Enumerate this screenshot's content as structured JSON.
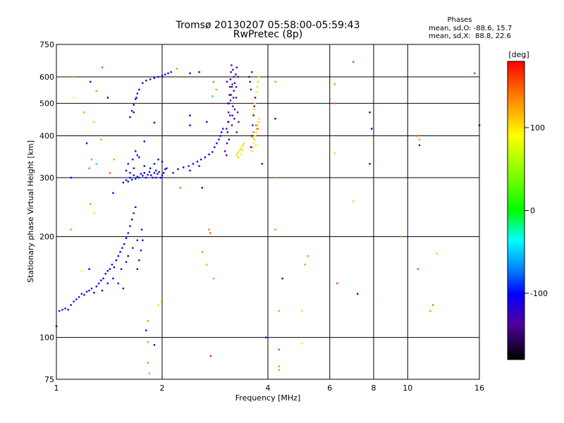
{
  "chart_data": {
    "type": "scatter",
    "title": "Tromsø 20130207 05:58:00-05:59:43",
    "subtitle": "RwPretec (8p)",
    "phases": {
      "heading": "Phases",
      "line_o": "mean, sd,O: -88.6, 15.7",
      "line_x": "mean, sd,X:  88.8, 22.6"
    },
    "xlabel": "Frequency [MHz]",
    "ylabel": "Stationary phase Virtual Height [km]",
    "x_scale": "log",
    "y_scale": "log",
    "xlim": [
      1,
      16
    ],
    "ylim": [
      75,
      750
    ],
    "x_ticks": [
      1,
      2,
      4,
      6,
      8,
      10,
      16
    ],
    "y_ticks": [
      75,
      100,
      200,
      300,
      400,
      500,
      600,
      750
    ],
    "grid": true,
    "colorbar": {
      "label": "[deg]",
      "range": [
        -180,
        180
      ],
      "ticks": [
        100,
        0,
        -100
      ]
    },
    "points_note_colors": {
      "blue": "#1e50ff",
      "navy": "#2a20c0",
      "yellow": "#e6e600",
      "orange": "#ff9a00"
    },
    "points": [
      [
        1.0,
        108,
        -110
      ],
      [
        1.02,
        120,
        -108
      ],
      [
        1.04,
        121,
        -112
      ],
      [
        1.06,
        122,
        -105
      ],
      [
        1.08,
        121,
        -115
      ],
      [
        1.1,
        125,
        -110
      ],
      [
        1.12,
        128,
        -108
      ],
      [
        1.14,
        130,
        -112
      ],
      [
        1.16,
        132,
        -106
      ],
      [
        1.18,
        135,
        -110
      ],
      [
        1.2,
        134,
        -115
      ],
      [
        1.22,
        137,
        -108
      ],
      [
        1.24,
        138,
        -112
      ],
      [
        1.26,
        140,
        -104
      ],
      [
        1.28,
        136,
        -110
      ],
      [
        1.3,
        142,
        -112
      ],
      [
        1.32,
        145,
        -108
      ],
      [
        1.34,
        148,
        -110
      ],
      [
        1.36,
        150,
        -106
      ],
      [
        1.38,
        155,
        -112
      ],
      [
        1.4,
        158,
        -110
      ],
      [
        1.42,
        160,
        -115
      ],
      [
        1.44,
        165,
        -108
      ],
      [
        1.46,
        162,
        -110
      ],
      [
        1.48,
        170,
        -112
      ],
      [
        1.5,
        175,
        -108
      ],
      [
        1.52,
        180,
        -110
      ],
      [
        1.54,
        185,
        -106
      ],
      [
        1.56,
        190,
        -112
      ],
      [
        1.58,
        198,
        -110
      ],
      [
        1.6,
        205,
        -108
      ],
      [
        1.62,
        215,
        -112
      ],
      [
        1.64,
        225,
        -110
      ],
      [
        1.66,
        235,
        -106
      ],
      [
        1.68,
        245,
        -112
      ],
      [
        1.7,
        160,
        -110
      ],
      [
        1.72,
        170,
        -115
      ],
      [
        1.74,
        182,
        -108
      ],
      [
        1.76,
        195,
        -110
      ],
      [
        1.45,
        150,
        -112
      ],
      [
        1.5,
        145,
        -108
      ],
      [
        1.55,
        140,
        -110
      ],
      [
        1.35,
        138,
        -106
      ],
      [
        1.4,
        145,
        -112
      ],
      [
        1.6,
        175,
        -110
      ],
      [
        1.65,
        185,
        -108
      ],
      [
        1.7,
        195,
        -112
      ],
      [
        1.75,
        210,
        -110
      ],
      [
        1.53,
        160,
        -106
      ],
      [
        1.58,
        168,
        -112
      ],
      [
        1.55,
        290,
        -110
      ],
      [
        1.58,
        295,
        -108
      ],
      [
        1.6,
        292,
        -112
      ],
      [
        1.62,
        300,
        -110
      ],
      [
        1.64,
        296,
        -106
      ],
      [
        1.66,
        305,
        -112
      ],
      [
        1.68,
        298,
        -110
      ],
      [
        1.7,
        302,
        -108
      ],
      [
        1.72,
        300,
        -112
      ],
      [
        1.74,
        308,
        -110
      ],
      [
        1.76,
        304,
        -106
      ],
      [
        1.78,
        310,
        -112
      ],
      [
        1.8,
        300,
        -110
      ],
      [
        1.82,
        306,
        -108
      ],
      [
        1.84,
        312,
        -112
      ],
      [
        1.86,
        305,
        -110
      ],
      [
        1.88,
        300,
        -106
      ],
      [
        1.9,
        310,
        -112
      ],
      [
        1.92,
        315,
        -110
      ],
      [
        1.94,
        308,
        -108
      ],
      [
        1.96,
        312,
        -112
      ],
      [
        1.98,
        300,
        -110
      ],
      [
        2.0,
        305,
        -106
      ],
      [
        2.02,
        310,
        -112
      ],
      [
        2.04,
        318,
        -110
      ],
      [
        2.06,
        320,
        -108
      ],
      [
        1.6,
        330,
        -112
      ],
      [
        1.65,
        340,
        -110
      ],
      [
        1.7,
        350,
        -106
      ],
      [
        1.68,
        360,
        -112
      ],
      [
        1.72,
        345,
        -110
      ],
      [
        1.9,
        330,
        -108
      ],
      [
        1.95,
        340,
        -112
      ],
      [
        2.0,
        335,
        -110
      ],
      [
        1.62,
        310,
        -106
      ],
      [
        1.78,
        325,
        -112
      ],
      [
        1.85,
        320,
        -110
      ],
      [
        1.92,
        300,
        -108
      ],
      [
        1.58,
        315,
        -112
      ],
      [
        1.66,
        320,
        -110
      ],
      [
        2.15,
        310,
        -108
      ],
      [
        2.22,
        318,
        -112
      ],
      [
        2.3,
        322,
        -110
      ],
      [
        2.38,
        325,
        -106
      ],
      [
        2.45,
        330,
        -112
      ],
      [
        2.52,
        335,
        -110
      ],
      [
        2.58,
        340,
        -108
      ],
      [
        2.65,
        345,
        -112
      ],
      [
        2.72,
        352,
        -110
      ],
      [
        2.78,
        358,
        -106
      ],
      [
        2.82,
        370,
        -112
      ],
      [
        2.86,
        380,
        -110
      ],
      [
        2.9,
        390,
        -108
      ],
      [
        2.93,
        400,
        -112
      ],
      [
        2.95,
        410,
        -110
      ],
      [
        2.98,
        420,
        -106
      ],
      [
        2.4,
        315,
        -112
      ],
      [
        2.55,
        325,
        -110
      ],
      [
        1.62,
        455,
        -110
      ],
      [
        1.64,
        475,
        -108
      ],
      [
        1.66,
        495,
        -112
      ],
      [
        1.68,
        515,
        -110
      ],
      [
        1.7,
        535,
        -106
      ],
      [
        1.66,
        470,
        -112
      ],
      [
        1.69,
        520,
        -110
      ],
      [
        1.72,
        550,
        -108
      ],
      [
        1.76,
        575,
        -112
      ],
      [
        1.8,
        585,
        -110
      ],
      [
        1.85,
        590,
        -106
      ],
      [
        1.9,
        595,
        -112
      ],
      [
        1.95,
        600,
        -110
      ],
      [
        2.0,
        605,
        -108
      ],
      [
        2.04,
        610,
        -112
      ],
      [
        2.08,
        615,
        -110
      ],
      [
        2.12,
        620,
        -106
      ],
      [
        3.05,
        350,
        -145
      ],
      [
        3.06,
        380,
        -140
      ],
      [
        3.07,
        410,
        -150
      ],
      [
        3.08,
        440,
        -135
      ],
      [
        3.09,
        470,
        -145
      ],
      [
        3.1,
        500,
        -140
      ],
      [
        3.11,
        530,
        -150
      ],
      [
        3.12,
        560,
        -142
      ],
      [
        3.13,
        590,
        -138
      ],
      [
        3.14,
        620,
        -148
      ],
      [
        3.15,
        650,
        -140
      ],
      [
        3.16,
        430,
        -145
      ],
      [
        3.17,
        460,
        -150
      ],
      [
        3.18,
        490,
        -140
      ],
      [
        3.19,
        520,
        -135
      ],
      [
        3.2,
        545,
        -145
      ],
      [
        3.22,
        575,
        -140
      ],
      [
        3.24,
        610,
        -150
      ],
      [
        3.26,
        640,
        -142
      ],
      [
        3.05,
        420,
        -138
      ],
      [
        3.08,
        500,
        -145
      ],
      [
        3.12,
        460,
        -140
      ],
      [
        3.16,
        560,
        -150
      ],
      [
        3.2,
        600,
        -142
      ],
      [
        3.25,
        520,
        -138
      ],
      [
        3.28,
        470,
        -145
      ],
      [
        3.3,
        440,
        -140
      ],
      [
        3.1,
        390,
        -150
      ],
      [
        3.14,
        530,
        -142
      ],
      [
        3.18,
        630,
        -138
      ],
      [
        3.22,
        480,
        -145
      ],
      [
        3.26,
        410,
        -140
      ],
      [
        3.06,
        580,
        -150
      ],
      [
        3.09,
        440,
        -142
      ],
      [
        3.13,
        510,
        -138
      ],
      [
        3.17,
        570,
        -145
      ],
      [
        3.21,
        450,
        -140
      ],
      [
        3.25,
        560,
        -150
      ],
      [
        3.29,
        600,
        -142
      ],
      [
        3.02,
        360,
        -138
      ],
      [
        3.25,
        350,
        110
      ],
      [
        3.28,
        355,
        115
      ],
      [
        3.31,
        360,
        105
      ],
      [
        3.34,
        365,
        112
      ],
      [
        3.37,
        370,
        108
      ],
      [
        3.4,
        375,
        110
      ],
      [
        3.29,
        345,
        115
      ],
      [
        3.35,
        352,
        105
      ],
      [
        3.42,
        380,
        112
      ],
      [
        3.38,
        362,
        108
      ],
      [
        3.6,
        360,
        110
      ],
      [
        3.62,
        370,
        115
      ],
      [
        3.64,
        380,
        105
      ],
      [
        3.66,
        390,
        112
      ],
      [
        3.68,
        400,
        108
      ],
      [
        3.7,
        410,
        110
      ],
      [
        3.72,
        420,
        115
      ],
      [
        3.74,
        430,
        105
      ],
      [
        3.76,
        440,
        112
      ],
      [
        3.78,
        450,
        108
      ],
      [
        3.63,
        465,
        110
      ],
      [
        3.65,
        480,
        115
      ],
      [
        3.67,
        500,
        105
      ],
      [
        3.69,
        520,
        112
      ],
      [
        3.71,
        540,
        108
      ],
      [
        3.73,
        560,
        110
      ],
      [
        3.75,
        580,
        115
      ],
      [
        3.77,
        600,
        105
      ],
      [
        3.62,
        395,
        112
      ],
      [
        3.7,
        375,
        108
      ],
      [
        3.58,
        370,
        -140
      ],
      [
        3.6,
        400,
        -145
      ],
      [
        3.62,
        430,
        -138
      ],
      [
        3.64,
        460,
        -142
      ],
      [
        3.66,
        490,
        -140
      ],
      [
        3.68,
        520,
        -145
      ],
      [
        3.58,
        550,
        -138
      ],
      [
        3.56,
        580,
        -142
      ],
      [
        3.54,
        600,
        -140
      ],
      [
        3.6,
        620,
        -145
      ],
      [
        3.64,
        410,
        140
      ],
      [
        3.7,
        430,
        145
      ],
      [
        3.74,
        420,
        150
      ],
      [
        1.12,
        600,
        125
      ],
      [
        1.25,
        580,
        -110
      ],
      [
        1.35,
        640,
        150
      ],
      [
        1.3,
        545,
        130
      ],
      [
        1.4,
        520,
        -110
      ],
      [
        1.12,
        520,
        90
      ],
      [
        1.2,
        470,
        125
      ],
      [
        1.28,
        440,
        110
      ],
      [
        1.22,
        380,
        -110
      ],
      [
        1.34,
        390,
        130
      ],
      [
        1.26,
        340,
        135
      ],
      [
        1.3,
        330,
        -50
      ],
      [
        1.24,
        320,
        140
      ],
      [
        1.1,
        300,
        -110
      ],
      [
        1.42,
        310,
        150
      ],
      [
        1.46,
        340,
        125
      ],
      [
        1.45,
        270,
        -110
      ],
      [
        1.25,
        250,
        130
      ],
      [
        1.28,
        235,
        110
      ],
      [
        1.1,
        210,
        130
      ],
      [
        1.18,
        158,
        90
      ],
      [
        1.24,
        160,
        -110
      ],
      [
        1.95,
        125,
        110
      ],
      [
        1.98,
        128,
        100
      ],
      [
        1.82,
        112,
        130
      ],
      [
        1.8,
        105,
        -110
      ],
      [
        1.82,
        97,
        130
      ],
      [
        1.9,
        95,
        -110
      ],
      [
        1.82,
        84,
        130
      ],
      [
        1.84,
        78,
        130
      ],
      [
        2.25,
        280,
        140
      ],
      [
        2.6,
        280,
        -110
      ],
      [
        2.72,
        210,
        140
      ],
      [
        2.74,
        205,
        150
      ],
      [
        2.6,
        180,
        130
      ],
      [
        2.68,
        165,
        120
      ],
      [
        2.8,
        150,
        130
      ],
      [
        2.75,
        88,
        170
      ],
      [
        2.4,
        460,
        -110
      ],
      [
        2.4,
        430,
        -110
      ],
      [
        2.8,
        580,
        140
      ],
      [
        2.85,
        550,
        130
      ],
      [
        2.78,
        525,
        -50
      ],
      [
        2.68,
        440,
        -110
      ],
      [
        3.85,
        330,
        -110
      ],
      [
        4.2,
        580,
        130
      ],
      [
        4.2,
        450,
        -110
      ],
      [
        4.2,
        300,
        130
      ],
      [
        4.2,
        210,
        130
      ],
      [
        4.4,
        150,
        -160
      ],
      [
        4.3,
        120,
        130
      ],
      [
        4.3,
        92,
        160
      ],
      [
        4.3,
        82,
        130
      ],
      [
        4.3,
        80,
        130
      ],
      [
        3.95,
        100,
        -110
      ],
      [
        5.2,
        175,
        130
      ],
      [
        5.1,
        165,
        130
      ],
      [
        5.0,
        120,
        110
      ],
      [
        5.0,
        96,
        80
      ],
      [
        6.2,
        570,
        130
      ],
      [
        6.2,
        500,
        150
      ],
      [
        6.2,
        355,
        60
      ],
      [
        6.3,
        145,
        160
      ],
      [
        7.0,
        665,
        150
      ],
      [
        7.0,
        255,
        60
      ],
      [
        7.2,
        135,
        -110
      ],
      [
        7.8,
        470,
        -110
      ],
      [
        7.9,
        420,
        -110
      ],
      [
        7.8,
        330,
        -110
      ],
      [
        8.0,
        126,
        140
      ],
      [
        9.6,
        200,
        130
      ],
      [
        10.6,
        400,
        150
      ],
      [
        10.8,
        390,
        130
      ],
      [
        10.7,
        160,
        150
      ],
      [
        10.8,
        375,
        -110
      ],
      [
        12.1,
        178,
        60
      ],
      [
        11.8,
        125,
        140
      ],
      [
        11.6,
        120,
        130
      ],
      [
        15.5,
        615,
        160
      ],
      [
        16.0,
        430,
        -110
      ],
      [
        2.2,
        635,
        130
      ],
      [
        2.4,
        615,
        -110
      ],
      [
        2.55,
        620,
        -110
      ],
      [
        1.9,
        438,
        -110
      ],
      [
        1.78,
        385,
        -110
      ]
    ]
  }
}
